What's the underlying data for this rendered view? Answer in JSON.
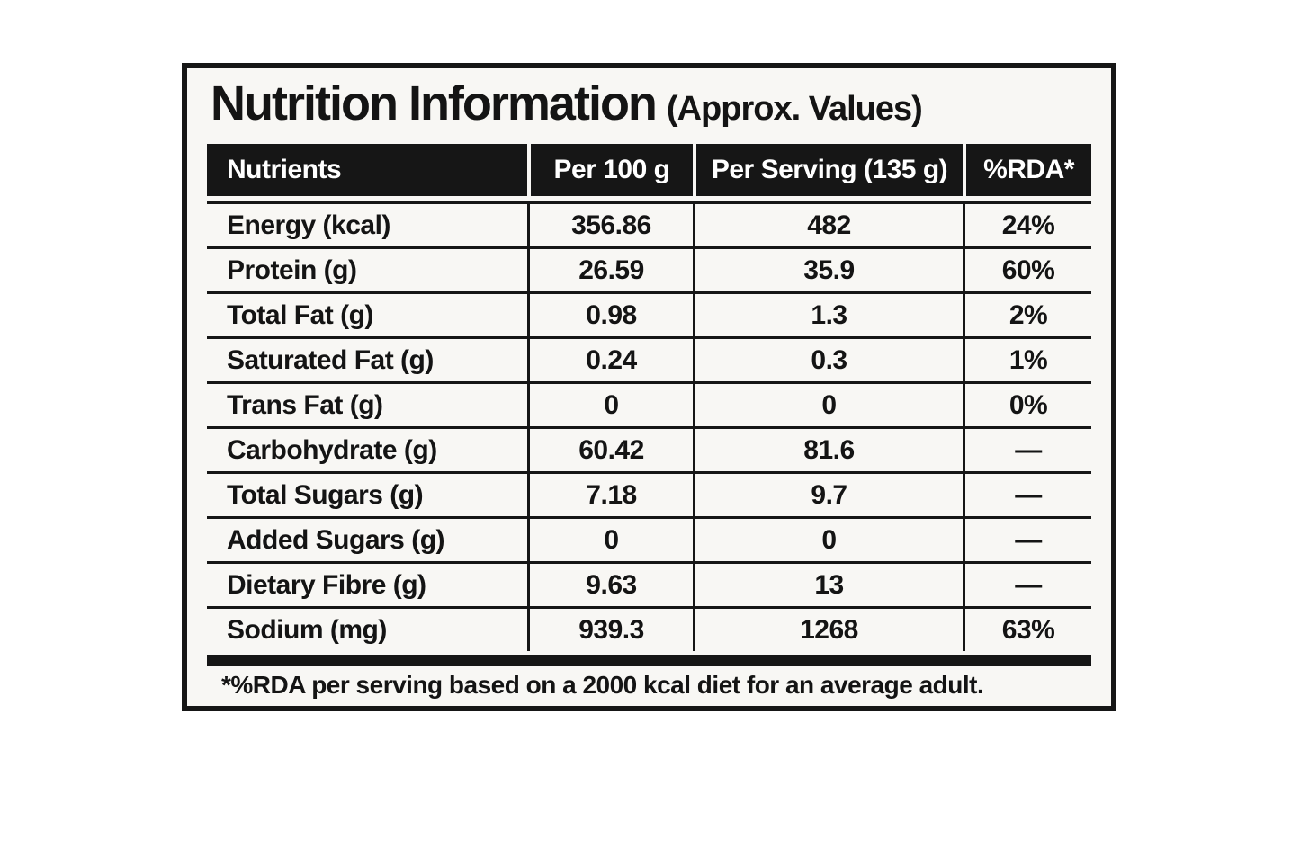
{
  "title": "Nutrition Information",
  "subtitle": "(Approx. Values)",
  "table": {
    "columns": [
      "Nutrients",
      "Per 100 g",
      "Per Serving (135 g)",
      "%RDA*"
    ],
    "rows": [
      {
        "nutrient": "Energy (kcal)",
        "per_100g": "356.86",
        "per_serving": "482",
        "rda": "24%"
      },
      {
        "nutrient": "Protein (g)",
        "per_100g": "26.59",
        "per_serving": "35.9",
        "rda": "60%"
      },
      {
        "nutrient": "Total Fat (g)",
        "per_100g": "0.98",
        "per_serving": "1.3",
        "rda": "2%"
      },
      {
        "nutrient": "Saturated Fat (g)",
        "per_100g": "0.24",
        "per_serving": "0.3",
        "rda": "1%"
      },
      {
        "nutrient": "Trans Fat (g)",
        "per_100g": "0",
        "per_serving": "0",
        "rda": "0%"
      },
      {
        "nutrient": "Carbohydrate (g)",
        "per_100g": "60.42",
        "per_serving": "81.6",
        "rda": "—"
      },
      {
        "nutrient": "Total Sugars (g)",
        "per_100g": "7.18",
        "per_serving": "9.7",
        "rda": "—"
      },
      {
        "nutrient": "Added Sugars (g)",
        "per_100g": "0",
        "per_serving": "0",
        "rda": "—"
      },
      {
        "nutrient": "Dietary Fibre (g)",
        "per_100g": "9.63",
        "per_serving": "13",
        "rda": "—"
      },
      {
        "nutrient": "Sodium (mg)",
        "per_100g": "939.3",
        "per_serving": "1268",
        "rda": "63%"
      }
    ]
  },
  "footnote": "*%RDA per serving based on a 2000 kcal diet for an average adult.",
  "colors": {
    "ink": "#161616",
    "header_bg": "#161616",
    "header_text": "#ffffff",
    "panel_bg": "#f8f7f4",
    "page_bg": "#ffffff"
  }
}
